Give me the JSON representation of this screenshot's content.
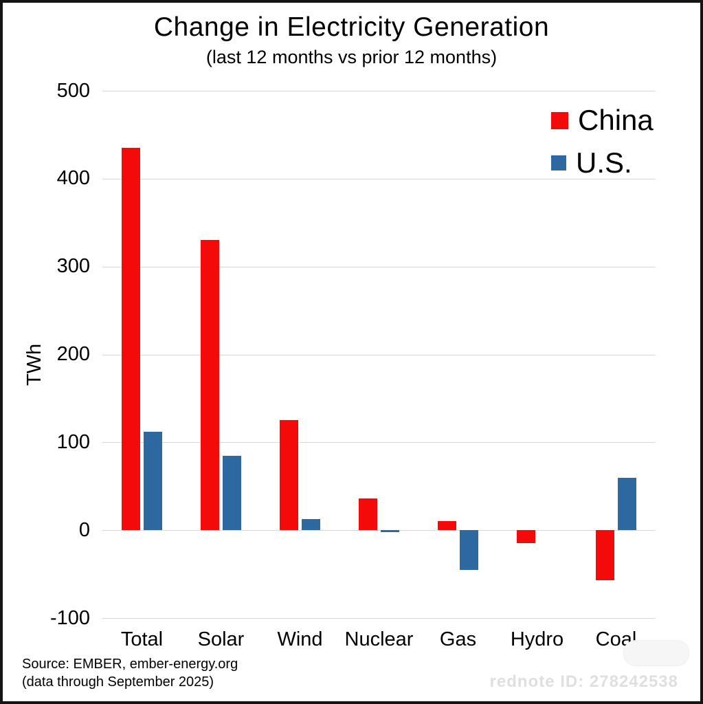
{
  "title": "Change in Electricity Generation",
  "subtitle": "(last 12 months vs prior 12 months)",
  "legend": [
    {
      "label": "China",
      "color": "#f50a0a"
    },
    {
      "label": "U.S.",
      "color": "#2d69a0"
    }
  ],
  "footer": {
    "line1": "Source: EMBER, ember-energy.org",
    "line2": "(data through September 2025)"
  },
  "watermark": {
    "text": "rednote ID: 278242538"
  },
  "chart_data": {
    "type": "bar",
    "title": "Change in Electricity Generation",
    "subtitle": "(last 12 months vs prior 12 months)",
    "categories": [
      "Total",
      "Solar",
      "Wind",
      "Nuclear",
      "Gas",
      "Hydro",
      "Coal"
    ],
    "series": [
      {
        "name": "China",
        "color": "#f50a0a",
        "values": [
          435,
          330,
          125,
          36,
          10,
          -15,
          -57
        ]
      },
      {
        "name": "U.S.",
        "color": "#2d69a0",
        "values": [
          112,
          85,
          13,
          -2,
          -45,
          0,
          60
        ]
      }
    ],
    "xlabel": "",
    "ylabel": "TWh",
    "ylim": [
      -100,
      500
    ],
    "y_ticks": [
      500,
      400,
      300,
      200,
      100,
      0,
      -100
    ],
    "grid": "horizontal",
    "legend_position": "top-right"
  }
}
